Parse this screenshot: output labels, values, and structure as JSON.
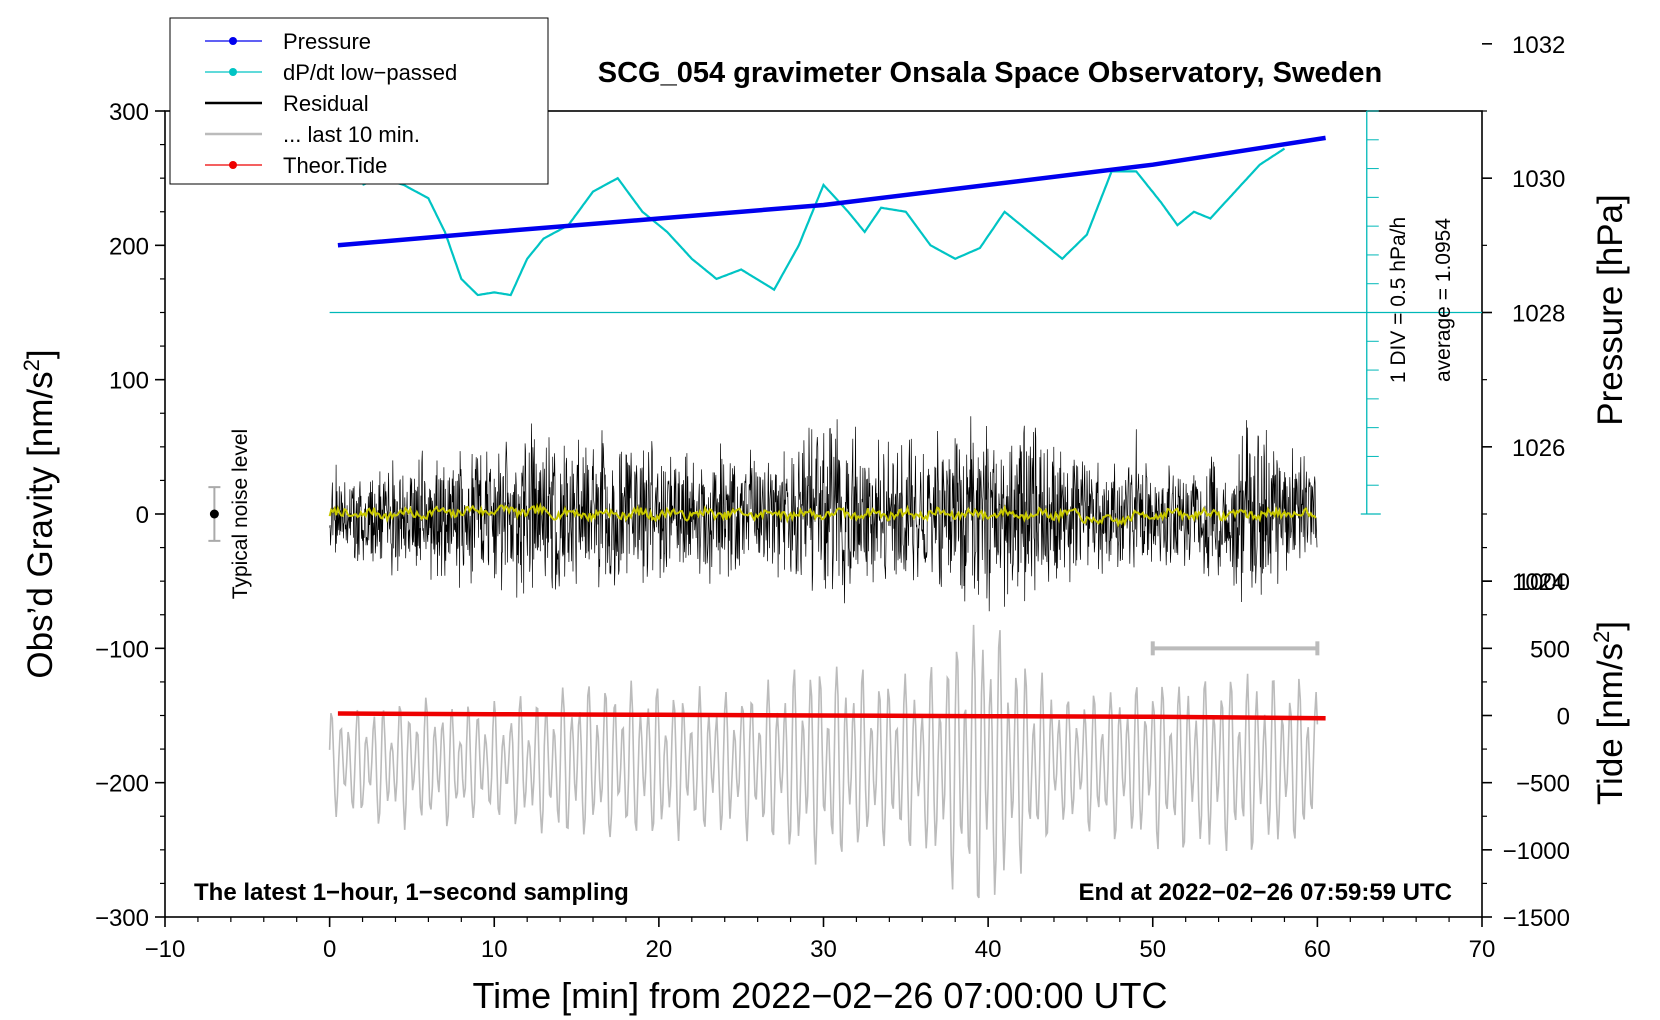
{
  "chart_data": {
    "type": "line",
    "title": "SCG_054 gravimeter Onsala Space Observatory, Sweden",
    "xlabel": "Time [min] from 2022−02−26 07:00:00 UTC",
    "ylabel_left": "Obs’d Gravity [nm/s",
    "ylabel_left_sup": "2",
    "ylabel_left_close": "]",
    "ylabel_right_pressure": "Pressure [hPa]",
    "ylabel_right_tide": "Tide [nm/s",
    "ylabel_right_tide_sup": "2",
    "ylabel_right_tide_close": "]",
    "xlim": [
      -10,
      70
    ],
    "ylim": [
      -300,
      300
    ],
    "x_ticks": [
      -10,
      0,
      10,
      20,
      30,
      40,
      50,
      60,
      70
    ],
    "x_tick_labels": [
      "−10",
      "0",
      "10",
      "20",
      "30",
      "40",
      "50",
      "60",
      "70"
    ],
    "y_ticks": [
      300,
      200,
      100,
      0,
      -100,
      -200,
      -300
    ],
    "y_tick_labels": [
      "300",
      "200",
      "100",
      "0",
      "−100",
      "−200",
      "−300"
    ],
    "pressure_ticks": [
      1032,
      1030,
      1028,
      1026,
      1024
    ],
    "pressure_tick_labels": [
      "1032",
      "1030",
      "1028",
      "1026",
      "1024"
    ],
    "pressure_scale": {
      "gravity_at_1028": 150,
      "nm_s2_per_hPa": 50
    },
    "tide_ticks": [
      1000,
      500,
      0,
      -500,
      -1000,
      -1500
    ],
    "tide_tick_labels": [
      "1000",
      "500",
      "0",
      "−500",
      "−1000",
      "−1500"
    ],
    "tide_scale": {
      "gravity_at_zero": -150,
      "nm_s2_per_gravity_unit": 10
    },
    "legend": [
      {
        "label": "Pressure",
        "color": "#0000ee",
        "marker": true
      },
      {
        "label": "dP/dt low−passed",
        "color": "#00c4c4",
        "marker": true
      },
      {
        "label": "Residual",
        "color": "#000000",
        "marker": false
      },
      {
        "label": "... last 10 min.",
        "color": "#bbbbbb",
        "marker": false
      },
      {
        "label": "Theor.Tide",
        "color": "#ee0000",
        "marker": true
      }
    ],
    "legend_position": "top-left",
    "annotations": {
      "noise": "Typical noise level",
      "div": "1 DIV = 0.5 hPa/h",
      "average": "average = 1.0954",
      "bottom_left": "The latest 1−hour, 1−second sampling",
      "bottom_right": "End at 2022−02−26 07:59:59 UTC"
    },
    "noise_bar": {
      "x": -7,
      "y_low": -20,
      "y_high": 20
    },
    "last10_range": {
      "x_start": 50,
      "x_end": 60,
      "y": -100
    },
    "dpdt_baseline_y": 150,
    "scale_bar": {
      "x": 63,
      "y_low": 0,
      "y_high": 300,
      "divisions": 14
    },
    "series": [
      {
        "name": "Pressure",
        "color": "#0000ee",
        "unit": "hPa",
        "x": [
          0.5,
          10,
          20,
          30,
          40,
          50,
          60.5
        ],
        "values": [
          1029.0,
          1029.2,
          1029.4,
          1029.6,
          1029.9,
          1030.2,
          1030.6
        ]
      },
      {
        "name": "dP/dt low−passed",
        "color": "#00c4c4",
        "unit": "nm/s2 (plotted)",
        "x": [
          2,
          3,
          4.5,
          6,
          7,
          8,
          9,
          10,
          11,
          12,
          13,
          14.5,
          16,
          17.5,
          19,
          20.5,
          22,
          23.5,
          25,
          27,
          28.5,
          30,
          31.5,
          32.5,
          33.5,
          35,
          36.5,
          38,
          39.5,
          41,
          43,
          44.5,
          46,
          47.5,
          49,
          50.5,
          51.5,
          52.5,
          53.5,
          55,
          56.5,
          58
        ],
        "values": [
          245,
          250,
          245,
          235,
          210,
          175,
          163,
          165,
          163,
          190,
          205,
          215,
          240,
          250,
          225,
          210,
          190,
          175,
          182,
          167,
          200,
          245,
          225,
          210,
          228,
          225,
          200,
          190,
          198,
          225,
          205,
          190,
          208,
          255,
          255,
          232,
          215,
          225,
          220,
          240,
          260,
          272
        ]
      },
      {
        "name": "Residual",
        "color": "#000000",
        "unit": "nm/s2",
        "x_range": [
          0,
          60
        ],
        "amplitude_peak": 150,
        "amplitude_typical": 60
      },
      {
        "name": "Residual smoothed",
        "color": "#c8c800",
        "unit": "nm/s2",
        "x_range": [
          0,
          60
        ],
        "x": [
          0,
          5,
          10,
          15,
          20,
          25,
          30,
          35,
          40,
          45,
          47,
          50,
          55,
          60
        ],
        "values": [
          0,
          0,
          3,
          0,
          0,
          0,
          0,
          0,
          0,
          0,
          -6,
          0,
          0,
          0
        ]
      },
      {
        "name": "... last 10 min.",
        "color": "#bbbbbb",
        "unit": "nm/s2",
        "x_range": [
          0,
          60
        ],
        "amplitude_peak": 120,
        "amplitude_typical": 50
      },
      {
        "name": "Theor.Tide",
        "color": "#ee0000",
        "unit": "nm/s2",
        "x": [
          0.5,
          10,
          20,
          30,
          40,
          50,
          60.5
        ],
        "values": [
          15,
          10,
          5,
          0,
          -5,
          -10,
          -20
        ]
      }
    ]
  }
}
